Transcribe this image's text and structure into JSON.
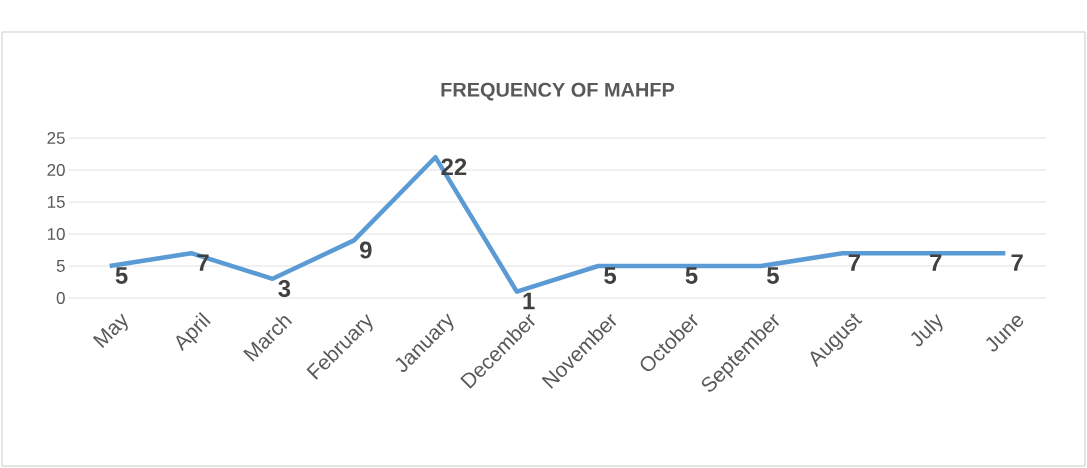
{
  "chart_data": {
    "type": "line",
    "title": "FREQUENCY OF MAHFP",
    "categories": [
      "May",
      "April",
      "March",
      "February",
      "January",
      "December",
      "November",
      "October",
      "September",
      "August",
      "July",
      "June"
    ],
    "values": [
      5,
      7,
      3,
      9,
      22,
      1,
      5,
      5,
      5,
      7,
      7,
      7
    ],
    "color": "#5b9bd5",
    "ylim": [
      0,
      25
    ],
    "yticks": [
      0,
      5,
      10,
      15,
      20,
      25
    ],
    "grid": "y",
    "data_labels": true,
    "marker": "none",
    "line_style": "solid"
  }
}
